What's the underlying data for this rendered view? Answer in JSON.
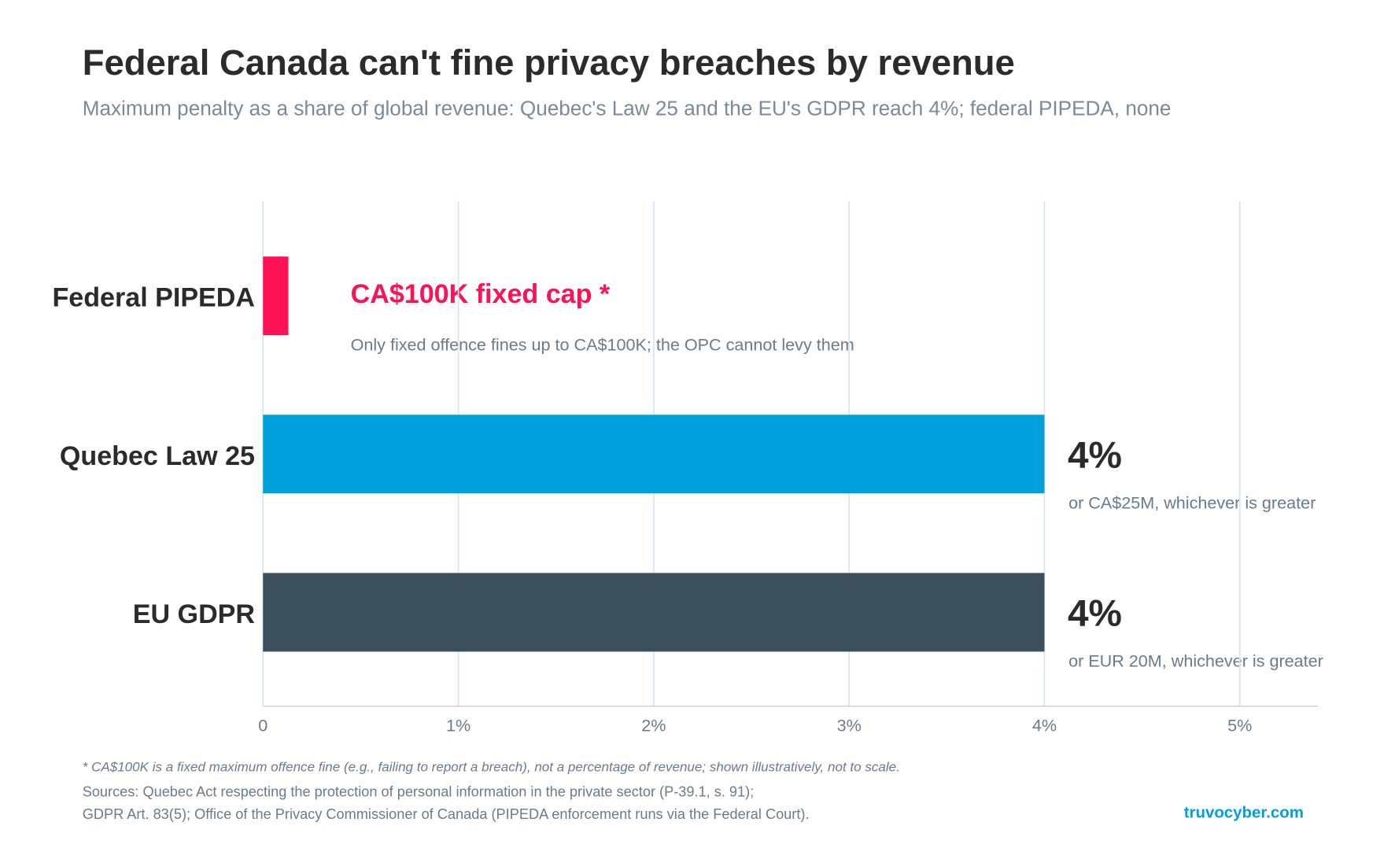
{
  "chart_data": {
    "type": "hbar",
    "title": "Federal Canada can't fine privacy breaches by revenue",
    "subtitle": "Maximum penalty as a share of global revenue: Quebec's Law 25 and the EU's GDPR reach 4%; federal PIPEDA, none",
    "categories": [
      "Federal PIPEDA",
      "Quebec Law 25",
      "EU GDPR"
    ],
    "values": [
      0.13,
      4,
      4
    ],
    "value_labels": [
      null,
      "4%",
      "4%"
    ],
    "colors": [
      "#ff1155",
      "#00a0dc",
      "#3b4f5c"
    ],
    "annotations": [
      "CA$100K fixed cap *",
      "Only fixed offence fines up to CA$100K; the OPC cannot levy them",
      "or CA$25M, whichever is greater",
      "or EUR 20M, whichever is greater"
    ],
    "xlim": [
      0,
      5.4
    ],
    "xticks": [
      0,
      {
        "value": 1,
        "label": "1%"
      },
      {
        "value": 2,
        "label": "2%"
      },
      {
        "value": 3,
        "label": "3%"
      },
      {
        "value": 4,
        "label": "4%"
      },
      {
        "value": 5,
        "label": "5%"
      }
    ],
    "grid": true,
    "footnote": "* CA$100K is a fixed maximum offence fine (e.g., failing to report a breach), not a percentage of revenue; shown illustratively, not to scale.",
    "sources": [
      "Sources: Quebec Act respecting the protection of personal information in the private sector (P-39.1, s. 91);",
      "GDPR Art. 83(5); Office of the Privacy Commissioner of Canada (PIPEDA enforcement runs via the Federal Court)."
    ],
    "brand": "truvocyber.com"
  }
}
